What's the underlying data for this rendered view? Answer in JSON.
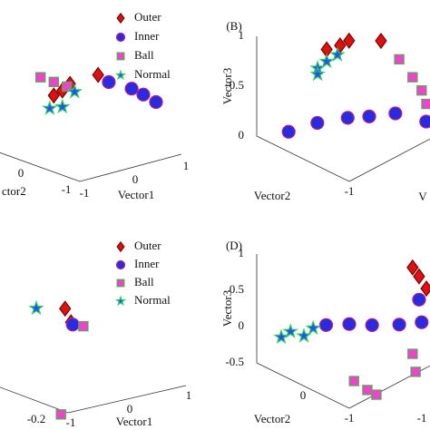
{
  "chart_data": [
    {
      "type": "scatter3d",
      "xlabel": "Vector1",
      "ylabel": "ctor2",
      "xlim": [
        -1,
        1
      ],
      "ylim": [
        -1,
        1
      ],
      "zlim": [
        0,
        1.2
      ],
      "xticks": [
        -1,
        0,
        1
      ],
      "yticks": [
        -1,
        0
      ],
      "legend": true,
      "series": [
        {
          "name": "Outer",
          "color": "#dd1111",
          "edgecolor": "#7a0000",
          "marker": "diamond",
          "x": [
            -0.62,
            -0.45,
            -0.3,
            -0.64
          ],
          "y": [
            0,
            0,
            0,
            -1
          ],
          "z": [
            0.71,
            0.74,
            0.79,
            1.12
          ]
        },
        {
          "name": "Inner",
          "color": "#2a2ae0",
          "edgecolor": "#b0208a",
          "marker": "circle",
          "x": [
            -0.43,
            0.02,
            0.25,
            0.5
          ],
          "y": [
            -1,
            -1,
            -1,
            -1
          ],
          "z": [
            1.01,
            0.87,
            0.77,
            0.65
          ]
        },
        {
          "name": "Ball",
          "color": "#ee44cc",
          "edgecolor": "#55aa55",
          "marker": "square",
          "x": [
            -0.88,
            -0.62,
            -0.36
          ],
          "y": [
            0,
            0,
            0
          ],
          "z": [
            0.95,
            0.86,
            0.77
          ]
        },
        {
          "name": "Normal",
          "color": "#2255ee",
          "edgecolor": "#33cc66",
          "marker": "star",
          "x": [
            -0.7,
            -0.45,
            -0.21
          ],
          "y": [
            0,
            0,
            0
          ],
          "z": [
            0.58,
            0.56,
            0.69
          ]
        }
      ]
    },
    {
      "type": "scatter3d",
      "panel": "(B)",
      "xlabel": "V",
      "ylabel": "Vector2",
      "zlabel": "Vector3",
      "xlim": [
        -1,
        1
      ],
      "ylim": [
        -1,
        1
      ],
      "zlim": [
        0,
        1
      ],
      "yticks": [
        -1
      ],
      "zticks": [
        0,
        0.5,
        1
      ],
      "series": [
        {
          "color": "#dd1111",
          "edgecolor": "#7a0000",
          "marker": "diamond",
          "x": [
            -0.45,
            -0.14,
            0.07,
            0.81
          ],
          "y": [
            0,
            0,
            0,
            0
          ],
          "z": [
            0.97,
            0.94,
            0.94,
            0.77
          ]
        },
        {
          "color": "#2a2ae0",
          "edgecolor": "#b0208a",
          "marker": "circle",
          "x": [
            -1,
            -1,
            -0.5,
            0,
            0.5,
            1
          ],
          "y": [
            0.31,
            -0.31,
            -0.5,
            -0.5,
            -0.6,
            -0.8
          ],
          "z": [
            0.2,
            0.43,
            0.41,
            0.31,
            0.25,
            0.1
          ]
        },
        {
          "color": "#ee44cc",
          "edgecolor": "#55aa55",
          "marker": "square",
          "x": [
            0.16,
            0.47,
            0.68,
            0.79
          ],
          "y": [
            -1,
            -1,
            -1,
            -1
          ],
          "z": [
            0.96,
            0.71,
            0.53,
            0.37
          ]
        },
        {
          "color": "#2255ee",
          "edgecolor": "#33cc66",
          "marker": "star",
          "x": [
            -0.66,
            -0.45,
            -0.2,
            -0.66
          ],
          "y": [
            0,
            0,
            0,
            0
          ],
          "z": [
            0.83,
            0.85,
            0.86,
            0.77
          ]
        }
      ]
    },
    {
      "type": "scatter3d",
      "xlabel": "Vector1",
      "xlim": [
        -1,
        1
      ],
      "ylim": [
        -0.2,
        0.2
      ],
      "zlim": [
        0,
        1
      ],
      "xticks": [
        -1,
        0,
        1
      ],
      "yticks": [
        -0.2
      ],
      "legend": true,
      "series": [
        {
          "name": "Outer",
          "color": "#dd1111",
          "edgecolor": "#7a0000",
          "marker": "diamond",
          "x": [
            -1.05,
            -0.95
          ],
          "y": [
            -0.2,
            -0.2
          ],
          "z": [
            0.77,
            0.66
          ]
        },
        {
          "name": "Inner",
          "color": "#2a2ae0",
          "edgecolor": "#b0208a",
          "marker": "circle",
          "x": [
            -0.92
          ],
          "y": [
            -0.2
          ],
          "z": [
            0.64
          ]
        },
        {
          "name": "Ball",
          "color": "#ee44cc",
          "edgecolor": "#55aa55",
          "marker": "square",
          "x": [
            -0.74,
            -1.12
          ],
          "y": [
            -0.2,
            -0.2
          ],
          "z": [
            0.61,
            0
          ]
        },
        {
          "name": "Normal",
          "color": "#2255ee",
          "edgecolor": "#33cc66",
          "marker": "star",
          "x": [
            -1
          ],
          "y": [
            -0.025
          ],
          "z": [
            0.68
          ]
        }
      ]
    },
    {
      "type": "scatter3d",
      "panel": "(D)",
      "ylabel": "Vector2",
      "zlabel": "Vector3",
      "xlim": [
        -1,
        1
      ],
      "ylim": [
        -1,
        1
      ],
      "zlim": [
        -0.5,
        1
      ],
      "xticks": [
        -1
      ],
      "yticks": [
        -1,
        0
      ],
      "zticks": [
        -0.5,
        0,
        0.5,
        1
      ],
      "series": [
        {
          "color": "#dd1111",
          "edgecolor": "#7a0000",
          "marker": "diamond",
          "x": [
            0.47,
            0.62,
            0.79
          ],
          "y": [
            -1,
            -1,
            -1
          ],
          "z": [
            0.98,
            0.81,
            0.59
          ]
        },
        {
          "color": "#2a2ae0",
          "edgecolor": "#b0208a",
          "marker": "circle",
          "x": [
            -1,
            -1,
            -0.47,
            0.16,
            0.68,
            0.62
          ],
          "y": [
            -0.5,
            -1,
            -1,
            -1,
            -1,
            -1
          ],
          "z": [
            0.49,
            0.66,
            0.48,
            0.29,
            0.16,
            0.49
          ]
        },
        {
          "color": "#ee44cc",
          "edgecolor": "#55aa55",
          "marker": "square",
          "x": [
            -0.89,
            -0.58,
            -0.37,
            0.47,
            0.54
          ],
          "y": [
            -1,
            -1,
            -1,
            -1,
            -1
          ],
          "z": [
            -0.16,
            -0.38,
            -0.51,
            -0.21,
            -0.48
          ]
        },
        {
          "color": "#2255ee",
          "edgecolor": "#33cc66",
          "marker": "star",
          "x": [
            -1,
            -1,
            -1,
            -1
          ],
          "y": [
            -0.02,
            0.27,
            0.47,
            -0.22
          ],
          "z": [
            0.19,
            0.16,
            0.02,
            0.36
          ]
        }
      ]
    }
  ]
}
